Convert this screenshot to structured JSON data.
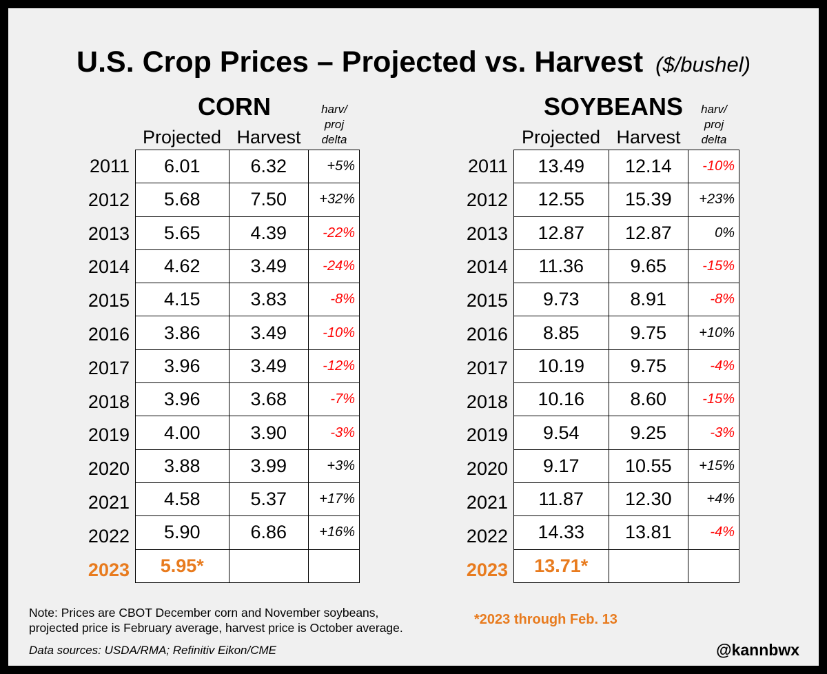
{
  "title": "U.S. Crop Prices – Projected vs. Harvest",
  "unit": "($/bushel)",
  "columns": {
    "projected": "Projected",
    "harvest": "Harvest",
    "delta": "harv/ proj delta"
  },
  "colors": {
    "highlight": "#e87b1e",
    "negative": "#ff0000",
    "text": "#000000",
    "background": "#f0f0f0"
  },
  "chart_data": [
    {
      "type": "table",
      "title": "CORN",
      "columns": [
        "Projected",
        "Harvest",
        "harv/proj delta"
      ],
      "rows": [
        {
          "year": "2011",
          "projected": "6.01",
          "harvest": "6.32",
          "delta": "+5%"
        },
        {
          "year": "2012",
          "projected": "5.68",
          "harvest": "7.50",
          "delta": "+32%"
        },
        {
          "year": "2013",
          "projected": "5.65",
          "harvest": "4.39",
          "delta": "-22%"
        },
        {
          "year": "2014",
          "projected": "4.62",
          "harvest": "3.49",
          "delta": "-24%"
        },
        {
          "year": "2015",
          "projected": "4.15",
          "harvest": "3.83",
          "delta": "-8%"
        },
        {
          "year": "2016",
          "projected": "3.86",
          "harvest": "3.49",
          "delta": "-10%"
        },
        {
          "year": "2017",
          "projected": "3.96",
          "harvest": "3.49",
          "delta": "-12%"
        },
        {
          "year": "2018",
          "projected": "3.96",
          "harvest": "3.68",
          "delta": "-7%"
        },
        {
          "year": "2019",
          "projected": "4.00",
          "harvest": "3.90",
          "delta": "-3%"
        },
        {
          "year": "2020",
          "projected": "3.88",
          "harvest": "3.99",
          "delta": "+3%"
        },
        {
          "year": "2021",
          "projected": "4.58",
          "harvest": "5.37",
          "delta": "+17%"
        },
        {
          "year": "2022",
          "projected": "5.90",
          "harvest": "6.86",
          "delta": "+16%"
        },
        {
          "year": "2023",
          "projected": "5.95*",
          "harvest": "",
          "delta": ""
        }
      ]
    },
    {
      "type": "table",
      "title": "SOYBEANS",
      "columns": [
        "Projected",
        "Harvest",
        "harv/proj delta"
      ],
      "rows": [
        {
          "year": "2011",
          "projected": "13.49",
          "harvest": "12.14",
          "delta": "-10%"
        },
        {
          "year": "2012",
          "projected": "12.55",
          "harvest": "15.39",
          "delta": "+23%"
        },
        {
          "year": "2013",
          "projected": "12.87",
          "harvest": "12.87",
          "delta": "0%"
        },
        {
          "year": "2014",
          "projected": "11.36",
          "harvest": "9.65",
          "delta": "-15%"
        },
        {
          "year": "2015",
          "projected": "9.73",
          "harvest": "8.91",
          "delta": "-8%"
        },
        {
          "year": "2016",
          "projected": "8.85",
          "harvest": "9.75",
          "delta": "+10%"
        },
        {
          "year": "2017",
          "projected": "10.19",
          "harvest": "9.75",
          "delta": "-4%"
        },
        {
          "year": "2018",
          "projected": "10.16",
          "harvest": "8.60",
          "delta": "-15%"
        },
        {
          "year": "2019",
          "projected": "9.54",
          "harvest": "9.25",
          "delta": "-3%"
        },
        {
          "year": "2020",
          "projected": "9.17",
          "harvest": "10.55",
          "delta": "+15%"
        },
        {
          "year": "2021",
          "projected": "11.87",
          "harvest": "12.30",
          "delta": "+4%"
        },
        {
          "year": "2022",
          "projected": "14.33",
          "harvest": "13.81",
          "delta": "-4%"
        },
        {
          "year": "2023",
          "projected": "13.71*",
          "harvest": "",
          "delta": ""
        }
      ]
    }
  ],
  "note_line1": "Note: Prices are CBOT December corn and November soybeans,",
  "note_line2": "projected price is February average, harvest price is October average.",
  "footnote": "*2023 through Feb. 13",
  "sources": "Data sources: USDA/RMA; Refinitiv Eikon/CME",
  "handle": "@kannbwx"
}
